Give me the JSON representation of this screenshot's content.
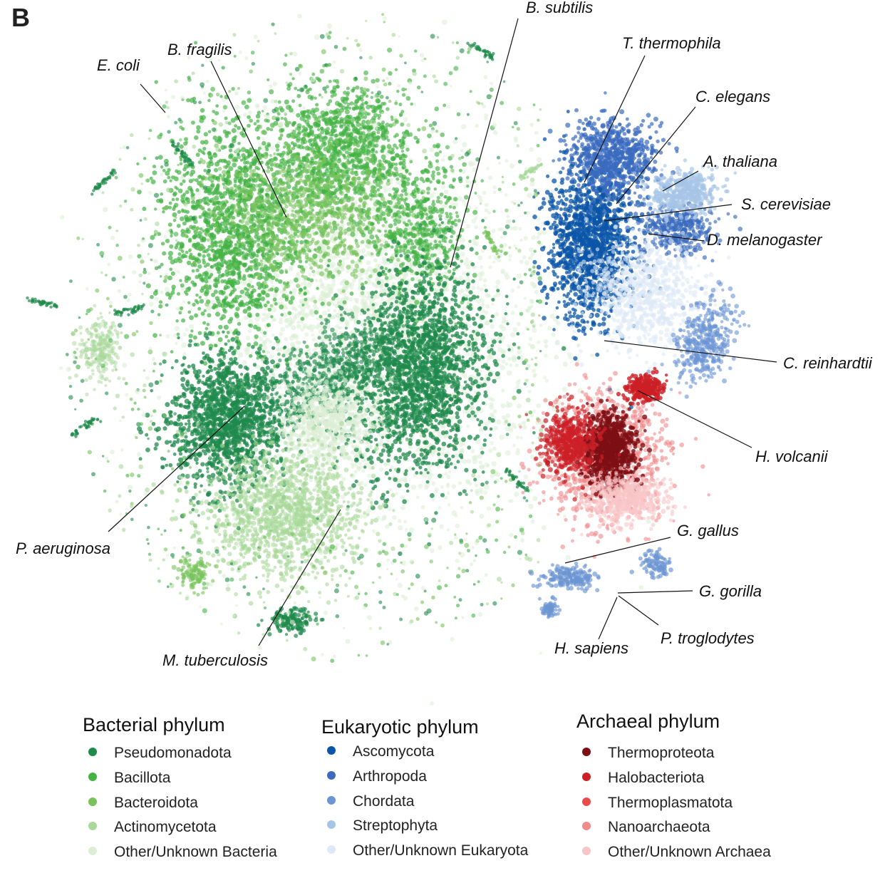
{
  "panel_label": "B",
  "chart_data": {
    "type": "scatter",
    "title": "",
    "xlabel": "",
    "ylabel": "",
    "grid": false,
    "legend_position": "bottom",
    "annotations": [
      "E. coli",
      "B. fragilis",
      "B. subtilis",
      "T. thermophila",
      "C. elegans",
      "A. thaliana",
      "S. cerevisiae",
      "D. melanogaster",
      "C. reinhardtii",
      "H. volcanii",
      "G. gallus",
      "G. gorilla",
      "P. troglodytes",
      "H. sapiens",
      "M. tuberculosis",
      "P. aeruginosa"
    ],
    "legend_groups": [
      {
        "title": "Bacterial phylum",
        "entries": [
          {
            "name": "Pseudomonadota",
            "color": "#1f8a4c"
          },
          {
            "name": "Bacillota",
            "color": "#43b244"
          },
          {
            "name": "Bacteroidota",
            "color": "#78c35c"
          },
          {
            "name": "Actinomycetota",
            "color": "#a8d89a"
          },
          {
            "name": "Other/Unknown Bacteria",
            "color": "#dcefd6"
          }
        ]
      },
      {
        "title": "Eukaryotic phylum",
        "entries": [
          {
            "name": "Ascomycota",
            "color": "#0b55a8"
          },
          {
            "name": "Arthropoda",
            "color": "#3a6bbf"
          },
          {
            "name": "Chordata",
            "color": "#6b95d3"
          },
          {
            "name": "Streptophyta",
            "color": "#a6c4e6"
          },
          {
            "name": "Other/Unknown Eukaryota",
            "color": "#dde9f6"
          }
        ]
      },
      {
        "title": "Archaeal phylum",
        "entries": [
          {
            "name": "Thermoproteota",
            "color": "#7d0f14"
          },
          {
            "name": "Halobacteriota",
            "color": "#cc1f26"
          },
          {
            "name": "Thermoplasmatota",
            "color": "#ea4c4c"
          },
          {
            "name": "Nanoarchaeota",
            "color": "#f08a8c"
          },
          {
            "name": "Other/Unknown Archaea",
            "color": "#f8c6c8"
          }
        ]
      }
    ]
  }
}
